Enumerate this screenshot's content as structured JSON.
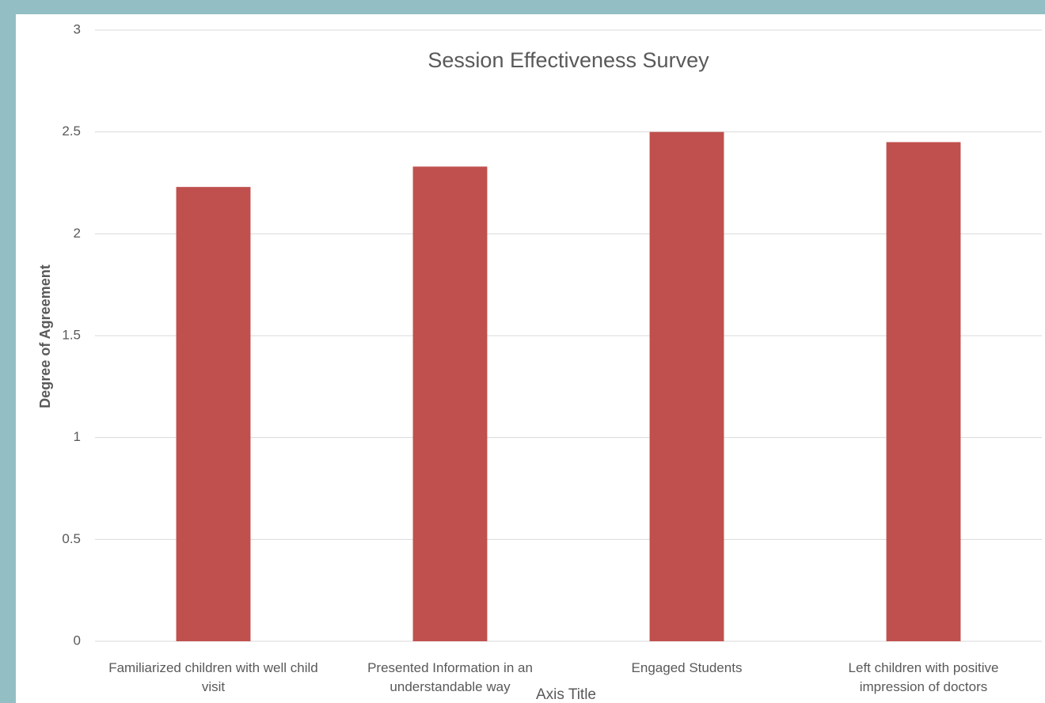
{
  "chart_data": {
    "type": "bar",
    "title": "Session Effectiveness Survey",
    "y_label": "Degree of Agreement",
    "x_label": "Axis Title",
    "categories": [
      "Familiarized children with well child visit",
      "Presented Information in an understandable way",
      "Engaged Students",
      "Left children with positive impression of doctors"
    ],
    "values": [
      2.23,
      2.33,
      2.5,
      2.45
    ],
    "color": "#c0504d",
    "ylim": [
      0,
      3
    ],
    "yticks": [
      0,
      0.5,
      1,
      1.5,
      2,
      2.5,
      3
    ],
    "grid": true
  }
}
